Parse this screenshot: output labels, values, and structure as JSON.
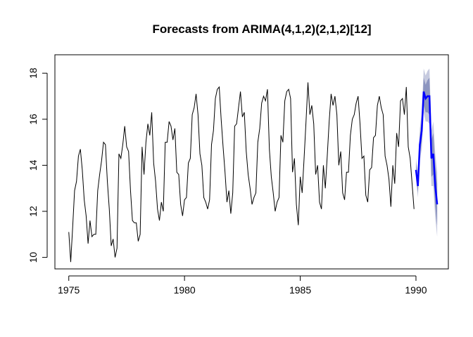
{
  "chart_data": {
    "type": "line",
    "title": "Forecasts from ARIMA(4,1,2)(2,1,2)[12]",
    "xlabel": "",
    "ylabel": "",
    "xlim": [
      1974.4,
      1991.4
    ],
    "ylim": [
      9.5,
      18.8
    ],
    "x_ticks": [
      1975,
      1980,
      1985,
      1990
    ],
    "y_ticks": [
      10,
      12,
      14,
      16,
      18
    ],
    "grid": false,
    "legend": "none",
    "colors": {
      "observed": "#000000",
      "forecast": "#0000ff",
      "interval_80": "#8c95c0",
      "interval_95": "#c6cadf"
    },
    "observed": {
      "start": 1975.0,
      "frequency": 12,
      "values": [
        11.1,
        9.8,
        11.3,
        12.9,
        13.3,
        14.4,
        14.7,
        13.8,
        12.5,
        11.8,
        10.6,
        11.6,
        10.9,
        11.0,
        11.0,
        12.9,
        13.6,
        14.2,
        15.0,
        14.9,
        13.3,
        12.1,
        10.5,
        10.8,
        10.0,
        10.4,
        14.5,
        14.3,
        14.9,
        15.7,
        14.8,
        14.6,
        12.9,
        11.6,
        11.5,
        11.5,
        10.7,
        11.0,
        14.8,
        13.6,
        15.0,
        15.8,
        15.3,
        16.3,
        14.1,
        13.3,
        12.1,
        11.6,
        12.4,
        12.0,
        15.0,
        15.0,
        15.9,
        15.7,
        15.1,
        15.6,
        13.7,
        13.6,
        12.3,
        11.8,
        12.5,
        12.6,
        14.1,
        14.3,
        16.2,
        16.5,
        17.1,
        16.2,
        14.5,
        14.0,
        12.6,
        12.4,
        12.1,
        12.5,
        14.9,
        15.5,
        16.9,
        17.3,
        17.4,
        16.0,
        14.8,
        13.7,
        12.4,
        12.9,
        11.9,
        12.8,
        15.7,
        15.8,
        16.5,
        17.2,
        16.1,
        16.3,
        14.6,
        13.6,
        13.0,
        12.3,
        12.6,
        12.8,
        15.0,
        15.6,
        16.7,
        17.0,
        16.8,
        17.3,
        14.7,
        13.5,
        12.8,
        12.0,
        12.4,
        12.6,
        15.3,
        15.0,
        16.8,
        17.2,
        17.3,
        16.9,
        13.7,
        14.3,
        12.3,
        11.4,
        13.5,
        12.8,
        14.3,
        15.9,
        17.6,
        16.2,
        16.6,
        15.8,
        13.6,
        14.0,
        12.4,
        12.1,
        14.0,
        13.0,
        14.4,
        15.9,
        17.1,
        16.6,
        17.0,
        16.2,
        14.0,
        14.6,
        12.8,
        12.5,
        13.7,
        13.7,
        15.3,
        16.0,
        16.2,
        16.7,
        17.0,
        15.8,
        14.3,
        14.4,
        12.7,
        12.4,
        13.8,
        13.9,
        15.2,
        15.3,
        16.6,
        17.0,
        16.5,
        16.2,
        14.4,
        14.0,
        13.4,
        12.2,
        14.0,
        13.2,
        15.4,
        14.8,
        16.8,
        16.9,
        16.2,
        17.4,
        14.8,
        14.3,
        13.2,
        12.1
      ]
    },
    "forecast": {
      "start": 1990.0,
      "frequency": 12,
      "mean": [
        13.8,
        13.1,
        14.9,
        15.5,
        17.2,
        16.9,
        17.0,
        17.0,
        14.3,
        14.5,
        13.1,
        12.3
      ],
      "lo80": [
        13.6,
        12.8,
        14.5,
        15.0,
        16.6,
        16.3,
        16.3,
        16.2,
        13.5,
        13.6,
        12.2,
        11.4
      ],
      "hi80": [
        14.1,
        13.4,
        15.3,
        16.0,
        17.8,
        17.5,
        17.7,
        17.8,
        15.1,
        15.4,
        14.0,
        13.2
      ],
      "lo95": [
        13.4,
        12.6,
        14.2,
        14.7,
        16.3,
        15.9,
        15.9,
        15.8,
        13.1,
        13.1,
        11.7,
        10.9
      ],
      "hi95": [
        14.3,
        13.7,
        15.6,
        16.3,
        18.2,
        17.9,
        18.1,
        18.2,
        15.5,
        15.9,
        14.5,
        13.7
      ]
    }
  }
}
